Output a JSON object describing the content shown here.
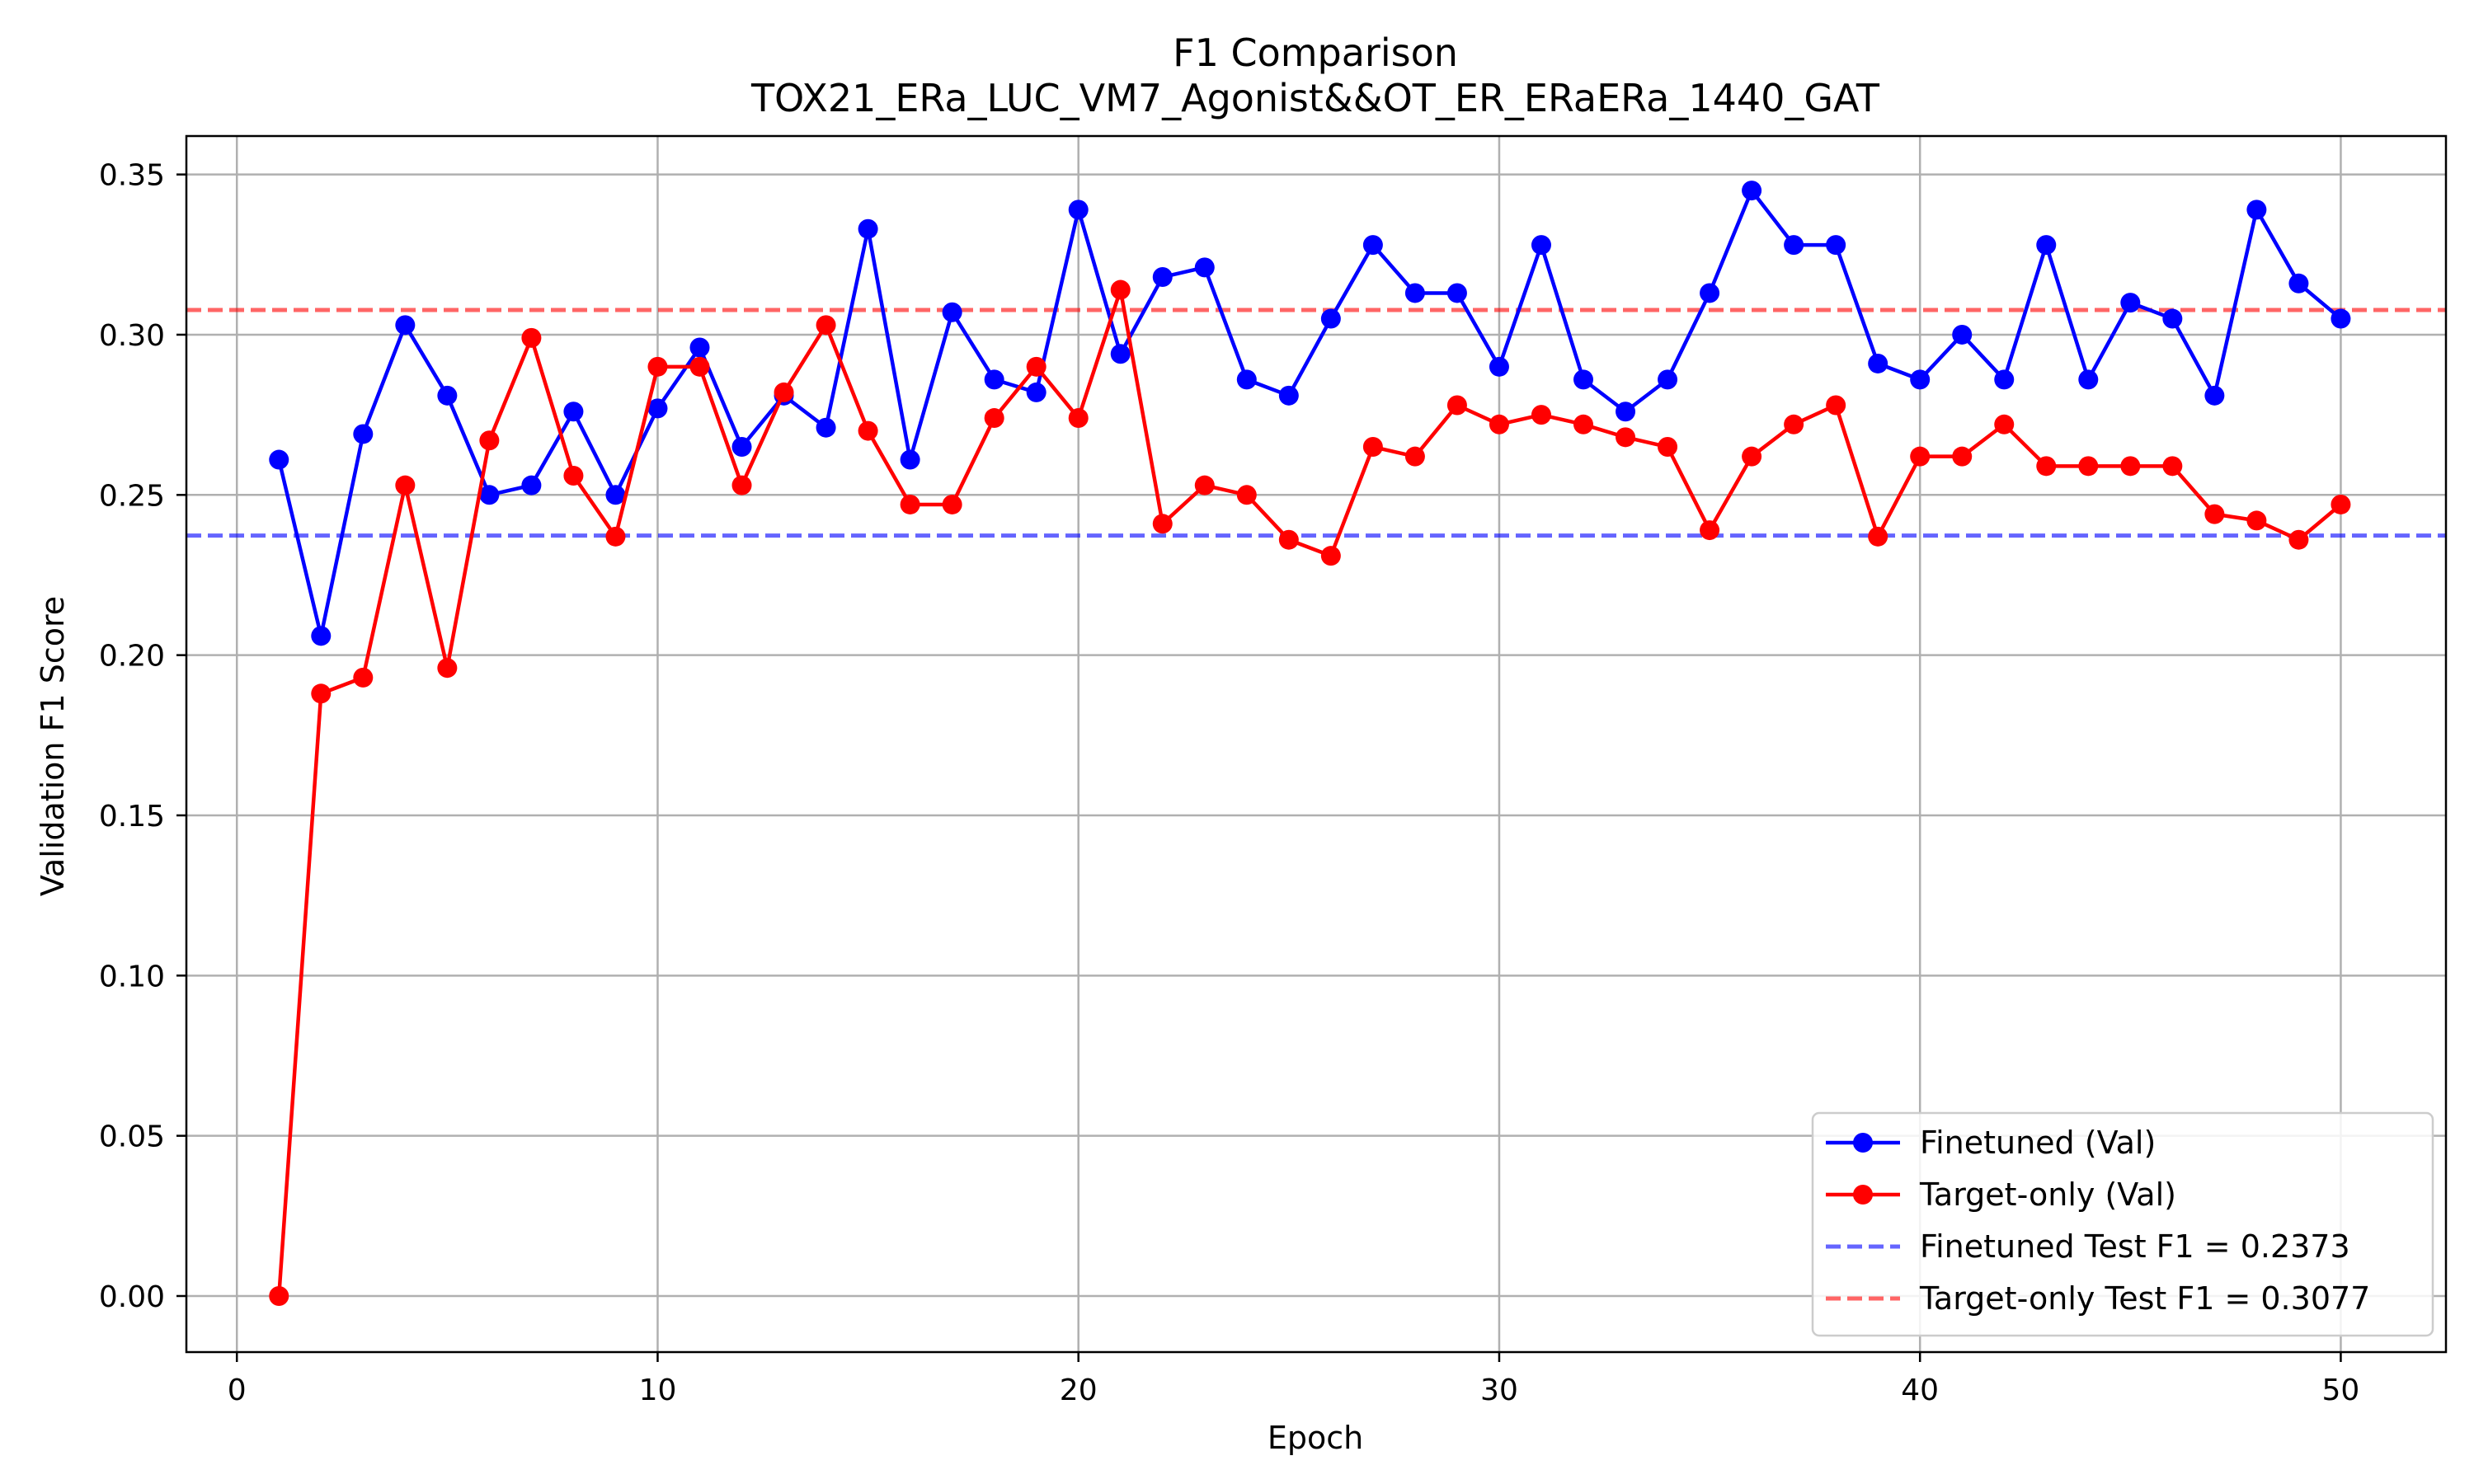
{
  "chart_data": {
    "type": "line",
    "title": "F1 Comparison",
    "subtitle": "TOX21_ERa_LUC_VM7_Agonist&&OT_ER_ERaERa_1440_GAT",
    "xlabel": "Epoch",
    "ylabel": "Validation F1 Score",
    "xlim": [
      -1.2,
      52.5
    ],
    "ylim": [
      -0.0175,
      0.362
    ],
    "xticks": [
      0,
      10,
      20,
      30,
      40,
      50
    ],
    "xtick_labels": [
      "0",
      "10",
      "20",
      "30",
      "40",
      "50"
    ],
    "yticks": [
      0.0,
      0.05,
      0.1,
      0.15,
      0.2,
      0.25,
      0.3,
      0.35
    ],
    "ytick_labels": [
      "0.00",
      "0.05",
      "0.10",
      "0.15",
      "0.20",
      "0.25",
      "0.30",
      "0.35"
    ],
    "grid": true,
    "legend_position": "lower-right",
    "x": [
      1,
      2,
      3,
      4,
      5,
      6,
      7,
      8,
      9,
      10,
      11,
      12,
      13,
      14,
      15,
      16,
      17,
      18,
      19,
      20,
      21,
      22,
      23,
      24,
      25,
      26,
      27,
      28,
      29,
      30,
      31,
      32,
      33,
      34,
      35,
      36,
      37,
      38,
      39,
      40,
      41,
      42,
      43,
      44,
      45,
      46,
      47,
      48,
      49,
      50
    ],
    "series": [
      {
        "name": "Finetuned (Val)",
        "color": "#0000ff",
        "style": "solid-marker",
        "values": [
          0.261,
          0.206,
          0.269,
          0.303,
          0.281,
          0.25,
          0.253,
          0.276,
          0.25,
          0.277,
          0.296,
          0.265,
          0.281,
          0.271,
          0.333,
          0.261,
          0.307,
          0.286,
          0.282,
          0.339,
          0.294,
          0.318,
          0.321,
          0.286,
          0.281,
          0.305,
          0.328,
          0.313,
          0.313,
          0.29,
          0.328,
          0.286,
          0.276,
          0.286,
          0.313,
          0.345,
          0.328,
          0.328,
          0.291,
          0.286,
          0.3,
          0.286,
          0.328,
          0.286,
          0.31,
          0.305,
          0.281,
          0.339,
          0.316,
          0.305
        ]
      },
      {
        "name": "Target-only (Val)",
        "color": "#ff0000",
        "style": "solid-marker",
        "values": [
          0.0,
          0.188,
          0.193,
          0.253,
          0.196,
          0.267,
          0.299,
          0.256,
          0.237,
          0.29,
          0.29,
          0.253,
          0.282,
          0.303,
          0.27,
          0.247,
          0.247,
          0.274,
          0.29,
          0.274,
          0.314,
          0.241,
          0.253,
          0.25,
          0.236,
          0.231,
          0.265,
          0.262,
          0.278,
          0.272,
          0.275,
          0.272,
          0.268,
          0.265,
          0.239,
          0.262,
          0.272,
          0.278,
          0.237,
          0.262,
          0.262,
          0.272,
          0.259,
          0.259,
          0.259,
          0.259,
          0.244,
          0.242,
          0.236,
          0.247
        ]
      }
    ],
    "reference_lines": [
      {
        "name": "Finetuned Test F1 = 0.2373",
        "value": 0.2373,
        "color": "#0000ff",
        "style": "dashed"
      },
      {
        "name": "Target-only Test F1 = 0.3077",
        "value": 0.3077,
        "color": "#ff0000",
        "style": "dashed"
      }
    ]
  }
}
